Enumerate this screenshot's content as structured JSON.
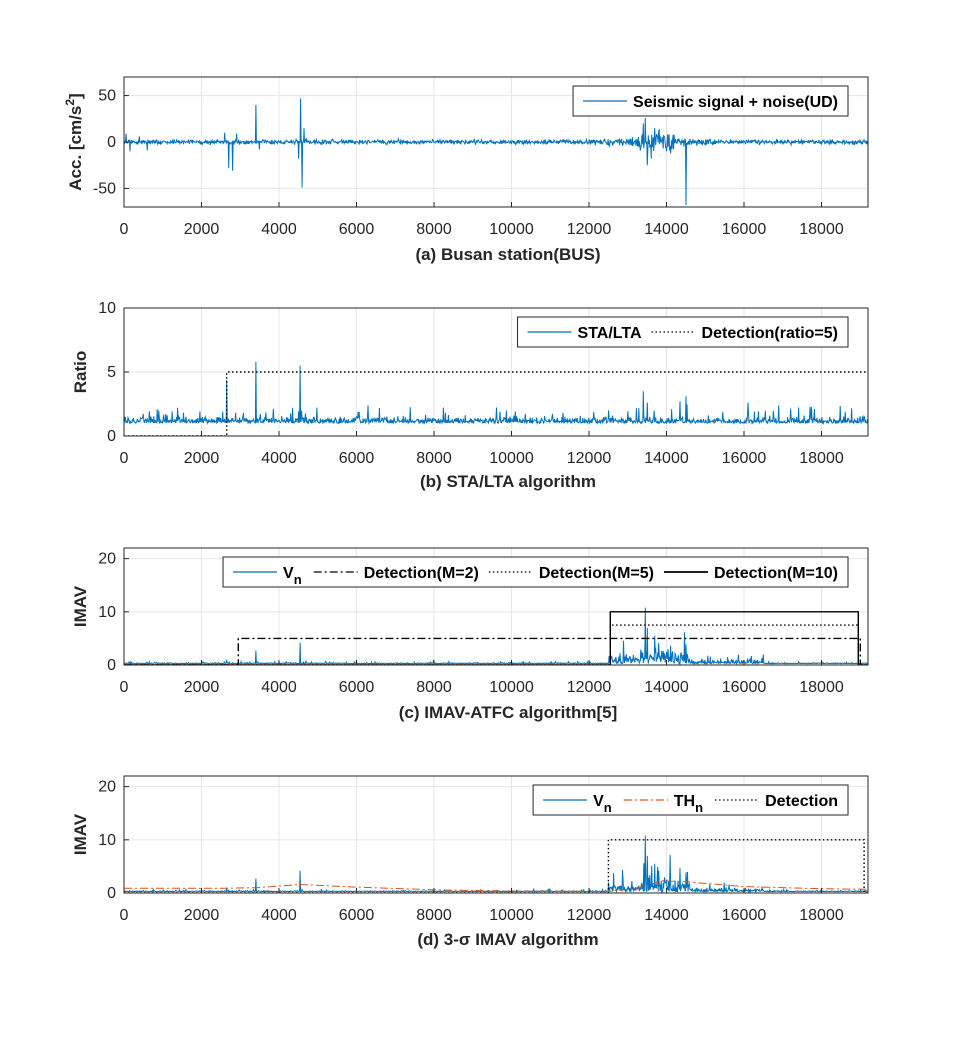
{
  "chart_data": [
    {
      "type": "line",
      "panel": "a",
      "caption": "(a) Busan station(BUS)",
      "ylabel_main": "Acc. [cm/s",
      "ylabel_sup": "2",
      "ylabel_end": "]",
      "xlim": [
        0,
        19200
      ],
      "ylim": [
        -70,
        70
      ],
      "xticks": [
        0,
        2000,
        4000,
        6000,
        8000,
        10000,
        12000,
        14000,
        16000,
        18000
      ],
      "yticks": [
        -50,
        0,
        50
      ],
      "grid": true,
      "legend_position": "top-right",
      "legend": [
        {
          "label": "Seismic signal + noise(UD)",
          "style": "solid",
          "color": "#0072BD"
        }
      ],
      "series": [
        {
          "name": "Seismic signal + noise(UD)",
          "color": "#0072BD",
          "noise": 2.5,
          "spikes": [
            [
              50,
              9
            ],
            [
              150,
              -10
            ],
            [
              400,
              6
            ],
            [
              600,
              -9
            ],
            [
              2600,
              10
            ],
            [
              2700,
              -28
            ],
            [
              2800,
              -31
            ],
            [
              2900,
              9
            ],
            [
              3400,
              40
            ],
            [
              3500,
              -8
            ],
            [
              4500,
              -18
            ],
            [
              4560,
              47
            ],
            [
              4590,
              -49
            ],
            [
              4650,
              15
            ],
            [
              13400,
              20
            ],
            [
              13450,
              26
            ],
            [
              13500,
              -25
            ],
            [
              13600,
              -18
            ],
            [
              13700,
              15
            ],
            [
              13800,
              12
            ],
            [
              14000,
              -10
            ],
            [
              14200,
              8
            ],
            [
              14500,
              -68
            ]
          ],
          "bursts": [
            [
              12300,
              13200,
              5
            ],
            [
              13200,
              14200,
              11
            ],
            [
              14200,
              15200,
              4
            ]
          ]
        }
      ]
    },
    {
      "type": "line",
      "panel": "b",
      "caption": "(b) STA/LTA algorithm",
      "ylabel": "Ratio",
      "xlim": [
        0,
        19200
      ],
      "ylim": [
        0,
        10
      ],
      "xticks": [
        0,
        2000,
        4000,
        6000,
        8000,
        10000,
        12000,
        14000,
        16000,
        18000
      ],
      "yticks": [
        0,
        5,
        10
      ],
      "grid": true,
      "legend_position": "top-right",
      "legend": [
        {
          "label": "STA/LTA",
          "style": "solid",
          "color": "#0072BD"
        },
        {
          "label": "Detection(ratio=5)",
          "style": "dotted",
          "color": "#000000"
        }
      ],
      "series": [
        {
          "name": "STA/LTA",
          "color": "#0072BD",
          "base": 1.0,
          "noise": 0.35,
          "spikes": [
            [
              2650,
              4.4
            ],
            [
              3400,
              5.8
            ],
            [
              4550,
              5.5
            ],
            [
              4350,
              2.2
            ],
            [
              13400,
              3.5
            ],
            [
              13500,
              2.6
            ],
            [
              14350,
              2.7
            ],
            [
              14500,
              3.1
            ],
            [
              16100,
              2.6
            ],
            [
              16900,
              2.4
            ],
            [
              17700,
              2.3
            ],
            [
              12500,
              2.0
            ]
          ]
        },
        {
          "name": "Detection(ratio=5)",
          "color": "#000000",
          "style": "dotted",
          "steps": [
            [
              0,
              0
            ],
            [
              2650,
              0
            ],
            [
              2650,
              5
            ],
            [
              19200,
              5
            ]
          ]
        }
      ]
    },
    {
      "type": "line",
      "panel": "c",
      "caption": "(c) IMAV-ATFC algorithm[5]",
      "ylabel": "IMAV",
      "xlim": [
        0,
        19200
      ],
      "ylim": [
        0,
        22
      ],
      "xticks": [
        0,
        2000,
        4000,
        6000,
        8000,
        10000,
        12000,
        14000,
        16000,
        18000
      ],
      "yticks": [
        0,
        10,
        20
      ],
      "grid": true,
      "legend_position": "top-right",
      "legend": [
        {
          "label": "V",
          "sub": "n",
          "style": "solid",
          "color": "#0072BD"
        },
        {
          "label": "Detection(M=2)",
          "style": "dashdot",
          "color": "#000000"
        },
        {
          "label": "Detection(M=5)",
          "style": "dotted",
          "color": "#000000"
        },
        {
          "label": "Detection(M=10)",
          "style": "solid",
          "color": "#000000"
        }
      ],
      "series": [
        {
          "name": "V_n",
          "color": "#0072BD",
          "base": 0.25,
          "noise": 0.12,
          "spikes": [
            [
              2650,
              1.0
            ],
            [
              3400,
              2.7
            ],
            [
              4550,
              4.2
            ],
            [
              13450,
              10.8
            ],
            [
              13500,
              7.0
            ],
            [
              13700,
              5.5
            ],
            [
              13800,
              4.2
            ],
            [
              14500,
              3.9
            ],
            [
              14000,
              2.5
            ]
          ],
          "bursts": [
            [
              12500,
              13300,
              1.2
            ],
            [
              13300,
              14600,
              2.0
            ],
            [
              14600,
              16500,
              0.5
            ]
          ]
        },
        {
          "name": "Detection(M=2)",
          "color": "#000000",
          "style": "dashdot",
          "steps": [
            [
              0,
              0
            ],
            [
              2950,
              0
            ],
            [
              2950,
              5
            ],
            [
              19000,
              5
            ],
            [
              19000,
              0
            ],
            [
              19200,
              0
            ]
          ]
        },
        {
          "name": "Detection(M=5)",
          "color": "#000000",
          "style": "dotted",
          "steps": [
            [
              0,
              0
            ],
            [
              12550,
              0
            ],
            [
              12550,
              7.5
            ],
            [
              18950,
              7.5
            ],
            [
              18950,
              0
            ],
            [
              19200,
              0
            ]
          ]
        },
        {
          "name": "Detection(M=10)",
          "color": "#000000",
          "style": "solid",
          "steps": [
            [
              0,
              0
            ],
            [
              12550,
              0
            ],
            [
              12550,
              10
            ],
            [
              18950,
              10
            ],
            [
              18950,
              0
            ],
            [
              19200,
              0
            ]
          ]
        }
      ]
    },
    {
      "type": "line",
      "panel": "d",
      "caption": "(d) 3-σ IMAV algorithm",
      "ylabel": "IMAV",
      "xlim": [
        0,
        19200
      ],
      "ylim": [
        0,
        22
      ],
      "xticks": [
        0,
        2000,
        4000,
        6000,
        8000,
        10000,
        12000,
        14000,
        16000,
        18000
      ],
      "yticks": [
        0,
        10,
        20
      ],
      "grid": true,
      "legend_position": "top-right",
      "legend": [
        {
          "label": "V",
          "sub": "n",
          "style": "solid",
          "color": "#0072BD"
        },
        {
          "label": "TH",
          "sub": "n",
          "style": "dashdot",
          "color": "#D95319"
        },
        {
          "label": "Detection",
          "style": "dotted",
          "color": "#000000"
        }
      ],
      "series": [
        {
          "name": "V_n",
          "color": "#0072BD",
          "base": 0.25,
          "noise": 0.12,
          "spikes": [
            [
              2650,
              1.0
            ],
            [
              3400,
              2.7
            ],
            [
              4550,
              4.2
            ],
            [
              13450,
              10.8
            ],
            [
              13500,
              7.0
            ],
            [
              13700,
              5.5
            ],
            [
              13800,
              4.2
            ],
            [
              14500,
              3.9
            ],
            [
              14000,
              2.5
            ]
          ],
          "bursts": [
            [
              12500,
              13300,
              1.2
            ],
            [
              13300,
              14600,
              2.0
            ],
            [
              14600,
              16500,
              0.5
            ]
          ]
        },
        {
          "name": "TH_n",
          "color": "#D95319",
          "style": "dashdot",
          "points": [
            [
              0,
              0.9
            ],
            [
              2600,
              0.9
            ],
            [
              3400,
              1.0
            ],
            [
              4550,
              1.6
            ],
            [
              6000,
              1.1
            ],
            [
              8000,
              0.6
            ],
            [
              10000,
              0.35
            ],
            [
              12500,
              0.3
            ],
            [
              13200,
              0.8
            ],
            [
              13900,
              2.3
            ],
            [
              14500,
              2.1
            ],
            [
              16000,
              1.2
            ],
            [
              18000,
              0.8
            ],
            [
              19200,
              0.7
            ]
          ]
        },
        {
          "name": "Detection",
          "color": "#000000",
          "style": "dotted",
          "steps": [
            [
              0,
              0
            ],
            [
              12500,
              0
            ],
            [
              12500,
              10
            ],
            [
              19100,
              10
            ],
            [
              19100,
              0
            ],
            [
              19200,
              0
            ]
          ]
        }
      ]
    }
  ]
}
